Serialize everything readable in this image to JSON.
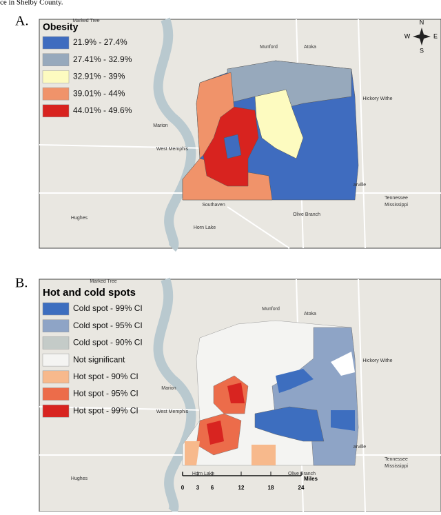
{
  "caption": "ce in Shelby County.",
  "panels": [
    {
      "label": "A.",
      "legend": {
        "title": "Obesity",
        "items": [
          {
            "label": "21.9% - 27.4%",
            "color": "#3f6cbf"
          },
          {
            "label": "27.41% - 32.9%",
            "color": "#97a9bc"
          },
          {
            "label": "32.91% - 39%",
            "color": "#fdfbc0"
          },
          {
            "label": "39.01% - 44%",
            "color": "#f0936a"
          },
          {
            "label": "44.01% - 49.6%",
            "color": "#d8231f"
          }
        ]
      },
      "places": [
        "Marked Tree",
        "Munford",
        "Atoka",
        "Hickory Withe",
        "Marion",
        "West Memphis",
        "Hughes",
        "Southaven",
        "Horn Lake",
        "Olive Branch",
        "arville",
        "Tennessee",
        "Mississippi"
      ]
    },
    {
      "label": "B.",
      "legend": {
        "title": "Hot and cold spots",
        "items": [
          {
            "label": "Cold spot - 99% CI",
            "color": "#3d6ebf"
          },
          {
            "label": "Cold spot - 95% CI",
            "color": "#8ea4c6"
          },
          {
            "label": "Cold spot - 90% CI",
            "color": "#c4cbc8"
          },
          {
            "label": "Not significant",
            "color": "#f4f4f2"
          },
          {
            "label": "Hot spot - 90% CI",
            "color": "#f7b98c"
          },
          {
            "label": "Hot spot - 95% CI",
            "color": "#ec6c4a"
          },
          {
            "label": "Hot spot - 99% CI",
            "color": "#d82420"
          }
        ]
      },
      "places": [
        "Marked Tree",
        "Munford",
        "Atoka",
        "Hickory Withe",
        "Marion",
        "West Memphis",
        "Hughes",
        "Horn Lake",
        "Olive Branch",
        "arville",
        "Tennessee",
        "Mississippi"
      ]
    }
  ],
  "compass": {
    "n": "N",
    "w": "W",
    "e": "E",
    "s": "S"
  },
  "scale_bar": {
    "ticks": [
      "0",
      "3",
      "6",
      "12",
      "18",
      "24"
    ],
    "unit": "Miles"
  }
}
